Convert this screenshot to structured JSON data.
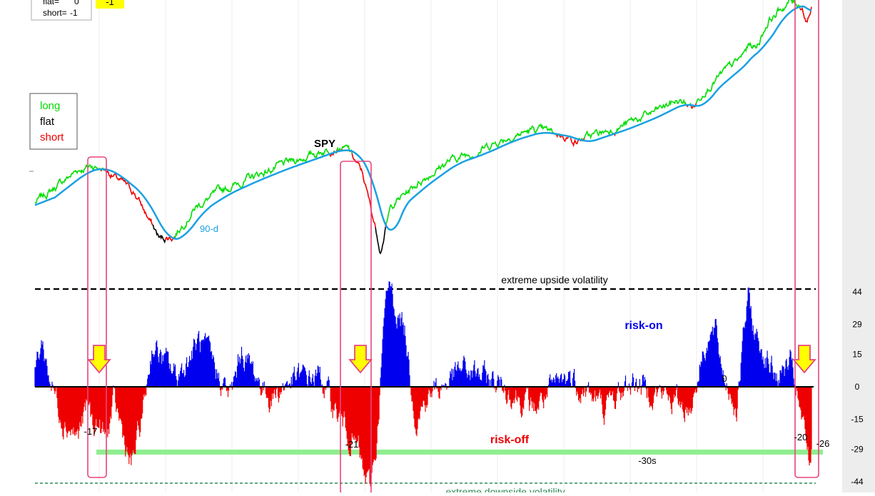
{
  "signal_box": {
    "flat_label": "flat=",
    "flat_value": "0",
    "short_label": "short=",
    "short_value": "-1"
  },
  "current_signal": "-1",
  "legend": {
    "long": "long",
    "flat": "flat",
    "short": "short"
  },
  "colors": {
    "long": "#00dd00",
    "flat": "#000000",
    "short": "#ee0000",
    "ma": "#1ba1e2",
    "risk_on": "#0000ee",
    "risk_off": "#ee0000",
    "highlight": "#e8457f",
    "band": "#90ee90",
    "arrow_fill": "#ffff00",
    "arrow_stroke": "#e8457f",
    "lower_line": "#2e8b57"
  },
  "annotations": {
    "spy": "SPY",
    "ma": "90-d",
    "upper": "extreme upside volatility",
    "lower": "extreme downside volatility",
    "risk_on": "risk-on",
    "risk_off": "risk-off",
    "zero": "0",
    "band": "-30s",
    "low1": "-17",
    "low2": "-21",
    "low3": "-20",
    "low4": "-26"
  },
  "chart_data": [
    {
      "type": "line",
      "title": "SPY",
      "series": [
        {
          "name": "long",
          "type": "line"
        },
        {
          "name": "flat",
          "type": "line"
        },
        {
          "name": "short",
          "type": "line"
        },
        {
          "name": "90-d",
          "type": "line"
        }
      ],
      "x_axis_labels": "none",
      "grid": true,
      "legend_position": "left",
      "highlight_regions": 3,
      "waypoints": [
        [
          0,
          0.35
        ],
        [
          60,
          0.58
        ],
        [
          80,
          0.61
        ],
        [
          100,
          0.58
        ],
        [
          140,
          0.42
        ],
        [
          175,
          0.1
        ],
        [
          195,
          0.12
        ],
        [
          225,
          0.32
        ],
        [
          260,
          0.43
        ],
        [
          300,
          0.52
        ],
        [
          340,
          0.6
        ],
        [
          380,
          0.67
        ],
        [
          420,
          0.74
        ],
        [
          440,
          0.72
        ],
        [
          460,
          0.55
        ],
        [
          476,
          0.22
        ],
        [
          485,
          0.03
        ],
        [
          500,
          0.33
        ],
        [
          540,
          0.5
        ],
        [
          580,
          0.64
        ],
        [
          620,
          0.71
        ],
        [
          660,
          0.8
        ],
        [
          700,
          0.86
        ],
        [
          745,
          0.82
        ],
        [
          760,
          0.78
        ],
        [
          820,
          0.88
        ],
        [
          860,
          0.96
        ],
        [
          900,
          1.06
        ],
        [
          925,
          1.02
        ],
        [
          940,
          1.14
        ],
        [
          990,
          1.35
        ],
        [
          1003,
          1.45
        ],
        [
          1012,
          1.43
        ],
        [
          1030,
          1.62
        ],
        [
          1060,
          1.75
        ],
        [
          1077,
          1.72
        ],
        [
          1082,
          1.62
        ],
        [
          1090,
          1.7
        ]
      ]
    },
    {
      "type": "line",
      "ylim": [
        -50,
        50
      ],
      "y_ticks": [
        44,
        29,
        15,
        0,
        -15,
        -29,
        -44
      ],
      "series": [
        {
          "name": "risk-on",
          "type": "line"
        },
        {
          "name": "risk-off",
          "type": "line"
        }
      ],
      "reference_lines": [
        {
          "label": "extreme upside volatility",
          "y": 44,
          "style": "dashed"
        },
        {
          "label": "0",
          "y": 0,
          "style": "solid"
        },
        {
          "label": "-30s",
          "y": -30,
          "style": "band"
        },
        {
          "label": "extreme downside volatility",
          "y": -47,
          "style": "dashed"
        }
      ],
      "point_labels": [
        -17,
        -21,
        -20,
        -26
      ],
      "signal_arrows": 3,
      "waypoints": [
        [
          0,
          10
        ],
        [
          10,
          21
        ],
        [
          20,
          5
        ],
        [
          40,
          -15
        ],
        [
          60,
          -23
        ],
        [
          75,
          -8
        ],
        [
          80,
          -17
        ],
        [
          90,
          -18
        ],
        [
          100,
          -25
        ],
        [
          110,
          -8
        ],
        [
          120,
          -17
        ],
        [
          135,
          -38
        ],
        [
          150,
          -15
        ],
        [
          165,
          20
        ],
        [
          180,
          12
        ],
        [
          200,
          5
        ],
        [
          230,
          21
        ],
        [
          250,
          10
        ],
        [
          275,
          -5
        ],
        [
          290,
          17
        ],
        [
          310,
          5
        ],
        [
          330,
          -5
        ],
        [
          360,
          3
        ],
        [
          400,
          5
        ],
        [
          420,
          -10
        ],
        [
          440,
          -21
        ],
        [
          455,
          -30
        ],
        [
          460,
          -40
        ],
        [
          470,
          -47
        ],
        [
          480,
          -25
        ],
        [
          490,
          30
        ],
        [
          498,
          48
        ],
        [
          505,
          38
        ],
        [
          520,
          25
        ],
        [
          535,
          -15
        ],
        [
          550,
          -5
        ],
        [
          600,
          8
        ],
        [
          650,
          2
        ],
        [
          700,
          -10
        ],
        [
          750,
          5
        ],
        [
          800,
          -10
        ],
        [
          840,
          3
        ],
        [
          890,
          -5
        ],
        [
          920,
          -10
        ],
        [
          940,
          20
        ],
        [
          955,
          25
        ],
        [
          965,
          8
        ],
        [
          985,
          -10
        ],
        [
          997,
          30
        ],
        [
          1002,
          42
        ],
        [
          1010,
          25
        ],
        [
          1040,
          5
        ],
        [
          1060,
          10
        ],
        [
          1070,
          -5
        ],
        [
          1078,
          -20
        ],
        [
          1083,
          -26
        ],
        [
          1088,
          -38
        ],
        [
          1090,
          -30
        ]
      ]
    }
  ]
}
